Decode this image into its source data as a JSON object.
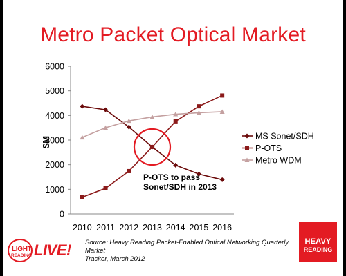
{
  "slide": {
    "title": "Metro Packet Optical Market",
    "annotation_line1": "P-OTS to pass",
    "annotation_line2": "Sonet/SDH in 2013",
    "source_line1": "Source: Heavy Reading Packet-Enabled Optical Networking Quarterly Market",
    "source_line2": "Tracker, March 2012",
    "logo_left_word1": "LIGHT",
    "logo_left_word2": "READING",
    "logo_left_word3": "LIVE!",
    "logo_right_word1": "HEAVY",
    "logo_right_word2": "READING"
  },
  "chart_data": {
    "type": "line",
    "title": "Metro Packet Optical Market",
    "ylabel": "$M",
    "xlabel": "",
    "x": [
      "2010",
      "2011",
      "2012",
      "2013",
      "2014",
      "2015",
      "2016"
    ],
    "ylim": [
      0,
      6000
    ],
    "yticks": [
      "0",
      "1000",
      "2000",
      "3000",
      "4000",
      "5000",
      "6000"
    ],
    "grid": false,
    "legend_position": "right",
    "series": [
      {
        "name": "MS Sonet/SDH",
        "color": "#6b0a0a",
        "marker": "diamond",
        "values": [
          4370,
          4230,
          3530,
          2720,
          1980,
          1620,
          1390
        ]
      },
      {
        "name": "P-OTS",
        "color": "#8b1a1a",
        "marker": "square",
        "values": [
          680,
          1040,
          1740,
          2720,
          3760,
          4370,
          4810
        ]
      },
      {
        "name": "Metro WDM",
        "color": "#c4a0a0",
        "marker": "triangle",
        "values": [
          3110,
          3500,
          3780,
          3940,
          4050,
          4110,
          4150
        ]
      }
    ],
    "highlight": {
      "x": "2013",
      "y": 2720,
      "color": "#e31b23"
    }
  }
}
